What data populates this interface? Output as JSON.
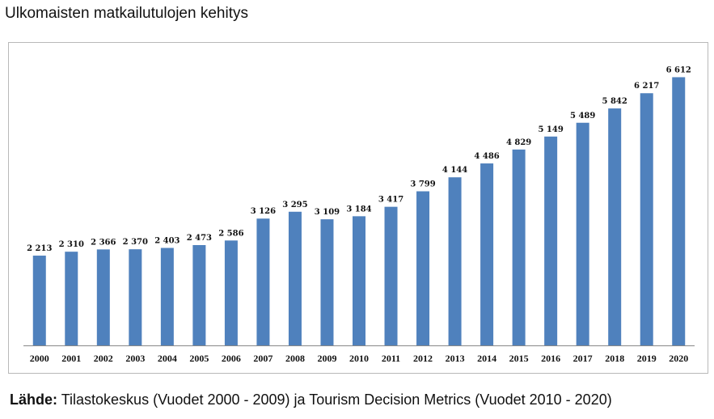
{
  "page": {
    "title": "Ulkomaisten matkailutulojen kehitys",
    "source_label": "Lähde:",
    "source_text": "Tilastokeskus (Vuodet 2000 - 2009) ja Tourism Decision Metrics (Vuodet 2010 - 2020)"
  },
  "colors": {
    "bar": "#4f81bd",
    "axis": "#888888"
  },
  "chart_data": {
    "type": "bar",
    "title": "",
    "xlabel": "",
    "ylabel": "",
    "ylim": [
      0,
      6900
    ],
    "grid": false,
    "categories": [
      "2000",
      "2001",
      "2002",
      "2003",
      "2004",
      "2005",
      "2006",
      "2007",
      "2008",
      "2009",
      "2010",
      "2011",
      "2012",
      "2013",
      "2014",
      "2015",
      "2016",
      "2017",
      "2018",
      "2019",
      "2020"
    ],
    "values": [
      2213,
      2310,
      2366,
      2370,
      2403,
      2473,
      2586,
      3126,
      3295,
      3109,
      3184,
      3417,
      3799,
      4144,
      4486,
      4829,
      5149,
      5489,
      5842,
      6217,
      6612
    ],
    "value_labels": [
      "2 213",
      "2 310",
      "2 366",
      "2 370",
      "2 403",
      "2 473",
      "2 586",
      "3 126",
      "3 295",
      "3 109",
      "3 184",
      "3 417",
      "3 799",
      "4 144",
      "4 486",
      "4 829",
      "5 149",
      "5 489",
      "5 842",
      "6 217",
      "6 612"
    ]
  }
}
